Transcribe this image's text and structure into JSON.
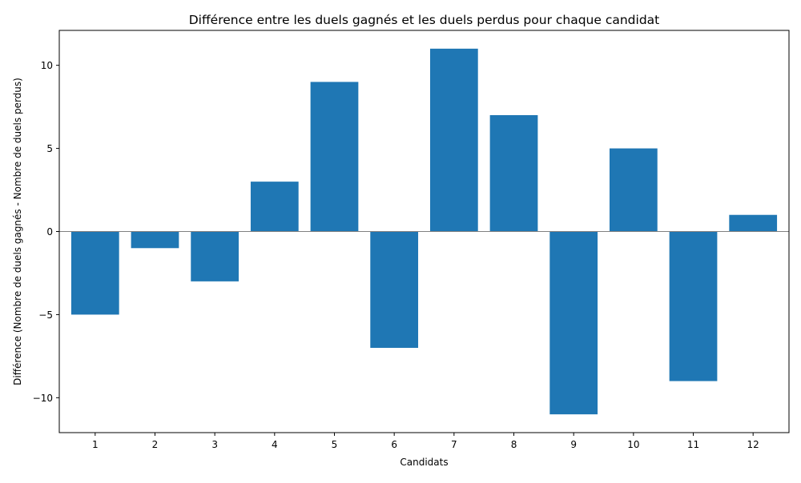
{
  "chart_data": {
    "type": "bar",
    "title": "Différence entre les duels gagnés et les duels perdus pour chaque candidat",
    "xlabel": "Candidats",
    "ylabel": "Différence (Nombre de duels gagnés - Nombre de duels perdus)",
    "categories": [
      "1",
      "2",
      "3",
      "4",
      "5",
      "6",
      "7",
      "8",
      "9",
      "10",
      "11",
      "12"
    ],
    "values": [
      -5,
      -1,
      -3,
      3,
      9,
      -7,
      11,
      7,
      -11,
      5,
      -9,
      1
    ],
    "ylim": [
      -12.1,
      12.1
    ],
    "yticks": [
      -10,
      -5,
      0,
      5,
      10
    ],
    "ytick_labels": [
      "−10",
      "−5",
      "0",
      "5",
      "10"
    ],
    "grid": false,
    "zero_line": true,
    "bar_color": "#1f77b4",
    "zero_line_color": "#808080"
  }
}
